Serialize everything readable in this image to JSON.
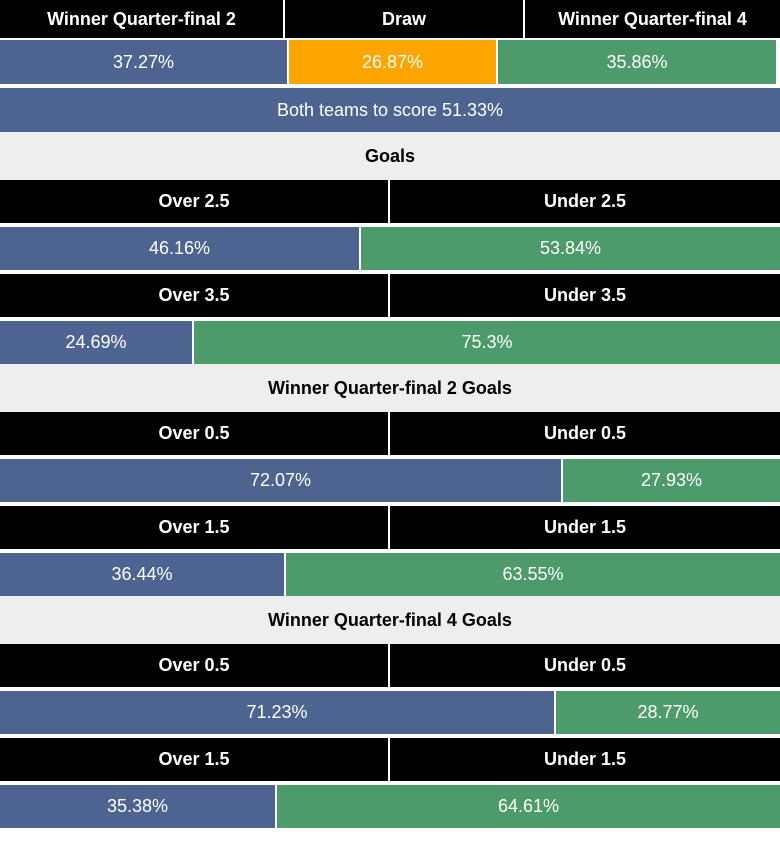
{
  "colors": {
    "blue": "#4d6491",
    "orange": "#ffa500",
    "green": "#4d9a6b",
    "header_bg": "#000000",
    "section_bg": "#eeeeee"
  },
  "result": {
    "headers": [
      "Winner Quarter-final 2",
      "Draw",
      "Winner Quarter-final 4"
    ],
    "labels": [
      "37.27%",
      "26.87%",
      "35.86%"
    ]
  },
  "btts": {
    "label": "Both teams to score 51.33%"
  },
  "sections": [
    {
      "title": "Goals",
      "markets": [
        {
          "over": "Over 2.5",
          "under": "Under 2.5",
          "over_label": "46.16%",
          "under_label": "53.84%"
        },
        {
          "over": "Over 3.5",
          "under": "Under 3.5",
          "over_label": "24.69%",
          "under_label": "75.3%"
        }
      ]
    },
    {
      "title": "Winner Quarter-final 2 Goals",
      "markets": [
        {
          "over": "Over 0.5",
          "under": "Under 0.5",
          "over_label": "72.07%",
          "under_label": "27.93%"
        },
        {
          "over": "Over 1.5",
          "under": "Under 1.5",
          "over_label": "36.44%",
          "under_label": "63.55%"
        }
      ]
    },
    {
      "title": "Winner Quarter-final 4 Goals",
      "markets": [
        {
          "over": "Over 0.5",
          "under": "Under 0.5",
          "over_label": "71.23%",
          "under_label": "28.77%"
        },
        {
          "over": "Over 1.5",
          "under": "Under 1.5",
          "over_label": "35.38%",
          "under_label": "64.61%"
        }
      ]
    }
  ],
  "chart_data": [
    {
      "type": "bar",
      "categories": [
        "Winner Quarter-final 2",
        "Draw",
        "Winner Quarter-final 4"
      ],
      "values": [
        37.27,
        26.87,
        35.86
      ]
    },
    {
      "type": "bar",
      "categories": [
        "Both teams to score"
      ],
      "values": [
        51.33
      ]
    },
    {
      "type": "bar",
      "categories": [
        "Over 2.5",
        "Under 2.5"
      ],
      "values": [
        46.16,
        53.84
      ]
    },
    {
      "type": "bar",
      "categories": [
        "Over 3.5",
        "Under 3.5"
      ],
      "values": [
        24.69,
        75.3
      ]
    },
    {
      "type": "bar",
      "categories": [
        "Over 0.5",
        "Under 0.5"
      ],
      "values": [
        72.07,
        27.93
      ]
    },
    {
      "type": "bar",
      "categories": [
        "Over 1.5",
        "Under 1.5"
      ],
      "values": [
        36.44,
        63.55
      ]
    },
    {
      "type": "bar",
      "categories": [
        "Over 0.5",
        "Under 0.5"
      ],
      "values": [
        71.23,
        28.77
      ]
    },
    {
      "type": "bar",
      "categories": [
        "Over 1.5",
        "Under 1.5"
      ],
      "values": [
        35.38,
        64.61
      ]
    }
  ]
}
